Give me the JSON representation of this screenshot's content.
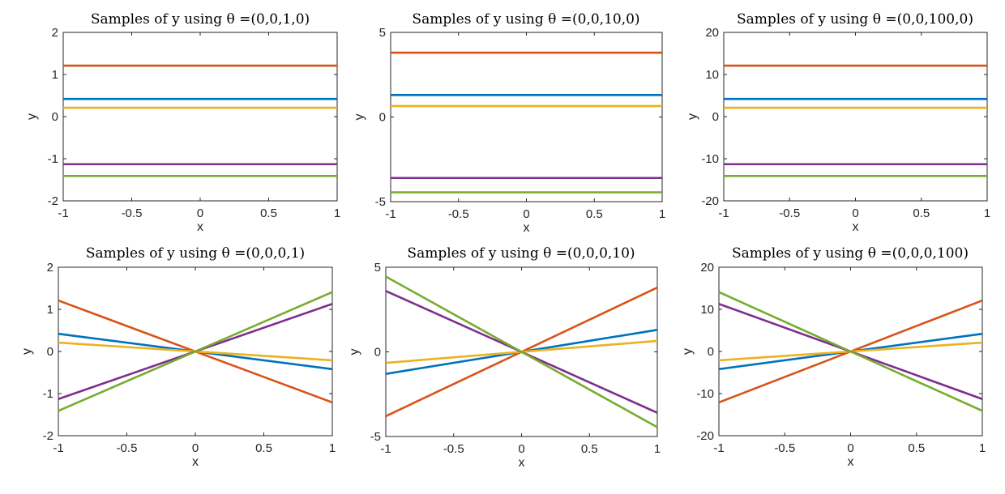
{
  "colors": {
    "axis": "#262626",
    "series": [
      "#0072BD",
      "#D95319",
      "#EDB120",
      "#7E2F8E",
      "#77AC30"
    ]
  },
  "chart_data": [
    {
      "type": "line",
      "title": "Samples of y using θ =(0,0,1,0)",
      "xlabel": "x",
      "ylabel": "y",
      "xlim": [
        -1,
        1
      ],
      "ylim": [
        -2,
        2
      ],
      "xticks": [
        "-1",
        "-0.5",
        "0",
        "0.5",
        "1"
      ],
      "xtick_values": [
        -1,
        -0.5,
        0,
        0.5,
        1
      ],
      "yticks": [
        "-2",
        "-1",
        "0",
        "1",
        "2"
      ],
      "ytick_values": [
        -2,
        -1,
        0,
        1,
        2
      ],
      "x": [
        -1,
        1
      ],
      "series": [
        {
          "values": [
            0.42,
            0.42
          ]
        },
        {
          "values": [
            1.21,
            1.21
          ]
        },
        {
          "values": [
            0.21,
            0.21
          ]
        },
        {
          "values": [
            -1.13,
            -1.13
          ]
        },
        {
          "values": [
            -1.41,
            -1.41
          ]
        }
      ]
    },
    {
      "type": "line",
      "title": "Samples of y using θ =(0,0,10,0)",
      "xlabel": "x",
      "ylabel": "y",
      "xlim": [
        -1,
        1
      ],
      "ylim": [
        -5,
        5
      ],
      "xticks": [
        "-1",
        "-0.5",
        "0",
        "0.5",
        "1"
      ],
      "xtick_values": [
        -1,
        -0.5,
        0,
        0.5,
        1
      ],
      "yticks": [
        "-5",
        "0",
        "5"
      ],
      "ytick_values": [
        -5,
        0,
        5
      ],
      "x": [
        -1,
        1
      ],
      "series": [
        {
          "values": [
            1.3,
            1.3
          ]
        },
        {
          "values": [
            3.8,
            3.8
          ]
        },
        {
          "values": [
            0.65,
            0.65
          ]
        },
        {
          "values": [
            -3.6,
            -3.6
          ]
        },
        {
          "values": [
            -4.45,
            -4.45
          ]
        }
      ]
    },
    {
      "type": "line",
      "title": "Samples of y using θ =(0,0,100,0)",
      "xlabel": "x",
      "ylabel": "y",
      "xlim": [
        -1,
        1
      ],
      "ylim": [
        -20,
        20
      ],
      "xticks": [
        "-1",
        "-0.5",
        "0",
        "0.5",
        "1"
      ],
      "xtick_values": [
        -1,
        -0.5,
        0,
        0.5,
        1
      ],
      "yticks": [
        "-20",
        "-10",
        "0",
        "10",
        "20"
      ],
      "ytick_values": [
        -20,
        -10,
        0,
        10,
        20
      ],
      "x": [
        -1,
        1
      ],
      "series": [
        {
          "values": [
            4.2,
            4.2
          ]
        },
        {
          "values": [
            12.1,
            12.1
          ]
        },
        {
          "values": [
            2.1,
            2.1
          ]
        },
        {
          "values": [
            -11.3,
            -11.3
          ]
        },
        {
          "values": [
            -14.1,
            -14.1
          ]
        }
      ]
    },
    {
      "type": "line",
      "title": "Samples of y using θ =(0,0,0,1)",
      "xlabel": "x",
      "ylabel": "y",
      "xlim": [
        -1,
        1
      ],
      "ylim": [
        -2,
        2
      ],
      "xticks": [
        "-1",
        "-0.5",
        "0",
        "0.5",
        "1"
      ],
      "xtick_values": [
        -1,
        -0.5,
        0,
        0.5,
        1
      ],
      "yticks": [
        "-2",
        "-1",
        "0",
        "1",
        "2"
      ],
      "ytick_values": [
        -2,
        -1,
        0,
        1,
        2
      ],
      "x": [
        -1,
        1
      ],
      "series": [
        {
          "values": [
            0.42,
            -0.42
          ]
        },
        {
          "values": [
            1.21,
            -1.21
          ]
        },
        {
          "values": [
            0.21,
            -0.21
          ]
        },
        {
          "values": [
            -1.13,
            1.13
          ]
        },
        {
          "values": [
            -1.41,
            1.41
          ]
        }
      ]
    },
    {
      "type": "line",
      "title": "Samples of y using θ =(0,0,0,10)",
      "xlabel": "x",
      "ylabel": "y",
      "xlim": [
        -1,
        1
      ],
      "ylim": [
        -5,
        5
      ],
      "xticks": [
        "-1",
        "-0.5",
        "0",
        "0.5",
        "1"
      ],
      "xtick_values": [
        -1,
        -0.5,
        0,
        0.5,
        1
      ],
      "yticks": [
        "-5",
        "0",
        "5"
      ],
      "ytick_values": [
        -5,
        0,
        5
      ],
      "x": [
        -1,
        1
      ],
      "series": [
        {
          "values": [
            -1.3,
            1.3
          ]
        },
        {
          "values": [
            -3.8,
            3.8
          ]
        },
        {
          "values": [
            -0.65,
            0.65
          ]
        },
        {
          "values": [
            3.6,
            -3.6
          ]
        },
        {
          "values": [
            4.45,
            -4.45
          ]
        }
      ]
    },
    {
      "type": "line",
      "title": "Samples of y using θ =(0,0,0,100)",
      "xlabel": "x",
      "ylabel": "y",
      "xlim": [
        -1,
        1
      ],
      "ylim": [
        -20,
        20
      ],
      "xticks": [
        "-1",
        "-0.5",
        "0",
        "0.5",
        "1"
      ],
      "xtick_values": [
        -1,
        -0.5,
        0,
        0.5,
        1
      ],
      "yticks": [
        "-20",
        "-10",
        "0",
        "10",
        "20"
      ],
      "ytick_values": [
        -20,
        -10,
        0,
        10,
        20
      ],
      "x": [
        -1,
        1
      ],
      "series": [
        {
          "values": [
            -4.2,
            4.2
          ]
        },
        {
          "values": [
            -12.1,
            12.1
          ]
        },
        {
          "values": [
            -2.1,
            2.1
          ]
        },
        {
          "values": [
            11.3,
            -11.3
          ]
        },
        {
          "values": [
            14.1,
            -14.1
          ]
        }
      ]
    }
  ]
}
